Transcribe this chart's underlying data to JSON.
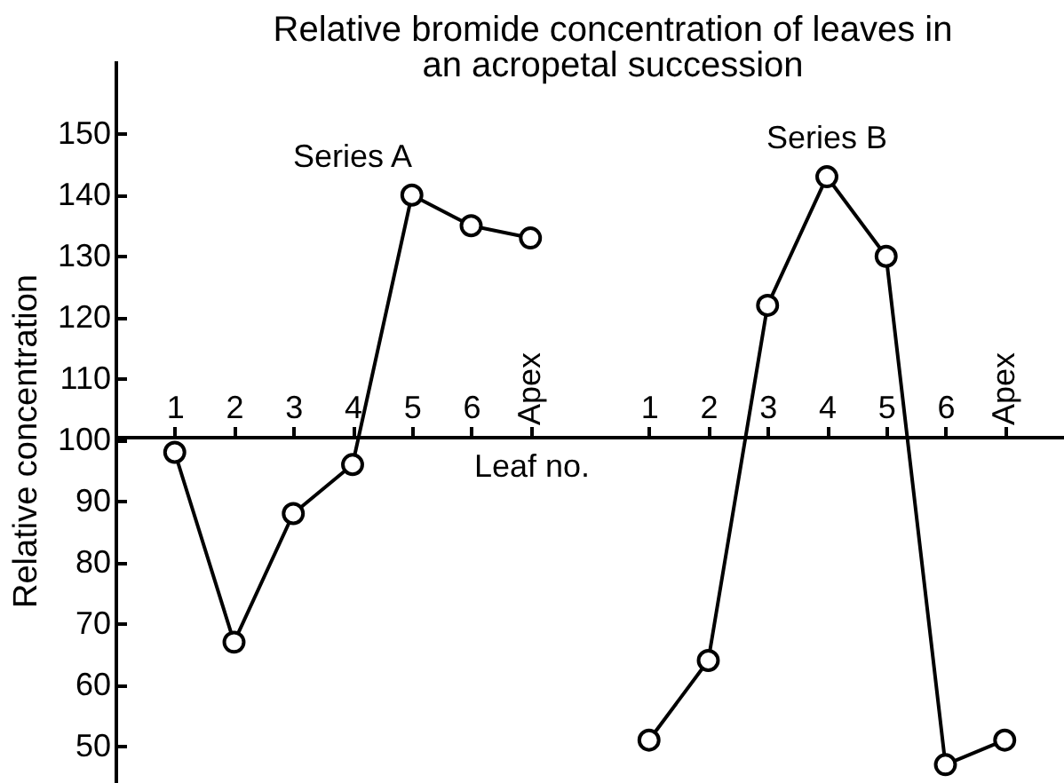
{
  "chart_data": {
    "type": "line",
    "title": "Relative bromide concentration of leaves in\nan acropetal succession",
    "xlabel": "Leaf no.",
    "ylabel": "Relative concentration",
    "categories": [
      "1",
      "2",
      "3",
      "4",
      "5",
      "6",
      "Apex",
      null,
      "1",
      "2",
      "3",
      "4",
      "5",
      "6",
      "Apex"
    ],
    "series": [
      {
        "name": "Series A",
        "color": "#000000",
        "values": [
          98,
          67,
          88,
          96,
          140,
          135,
          133,
          null,
          null,
          null,
          null,
          null,
          null,
          null,
          null
        ]
      },
      {
        "name": "Series B",
        "color": "#000000",
        "values": [
          null,
          null,
          null,
          null,
          null,
          null,
          null,
          null,
          51,
          64,
          122,
          143,
          130,
          47,
          51
        ]
      }
    ],
    "ylim": [
      44,
      162
    ],
    "yticks": [
      50,
      60,
      70,
      80,
      90,
      100,
      110,
      120,
      130,
      140,
      150
    ],
    "marker": "circle",
    "line_style": "solid",
    "legend": false
  }
}
